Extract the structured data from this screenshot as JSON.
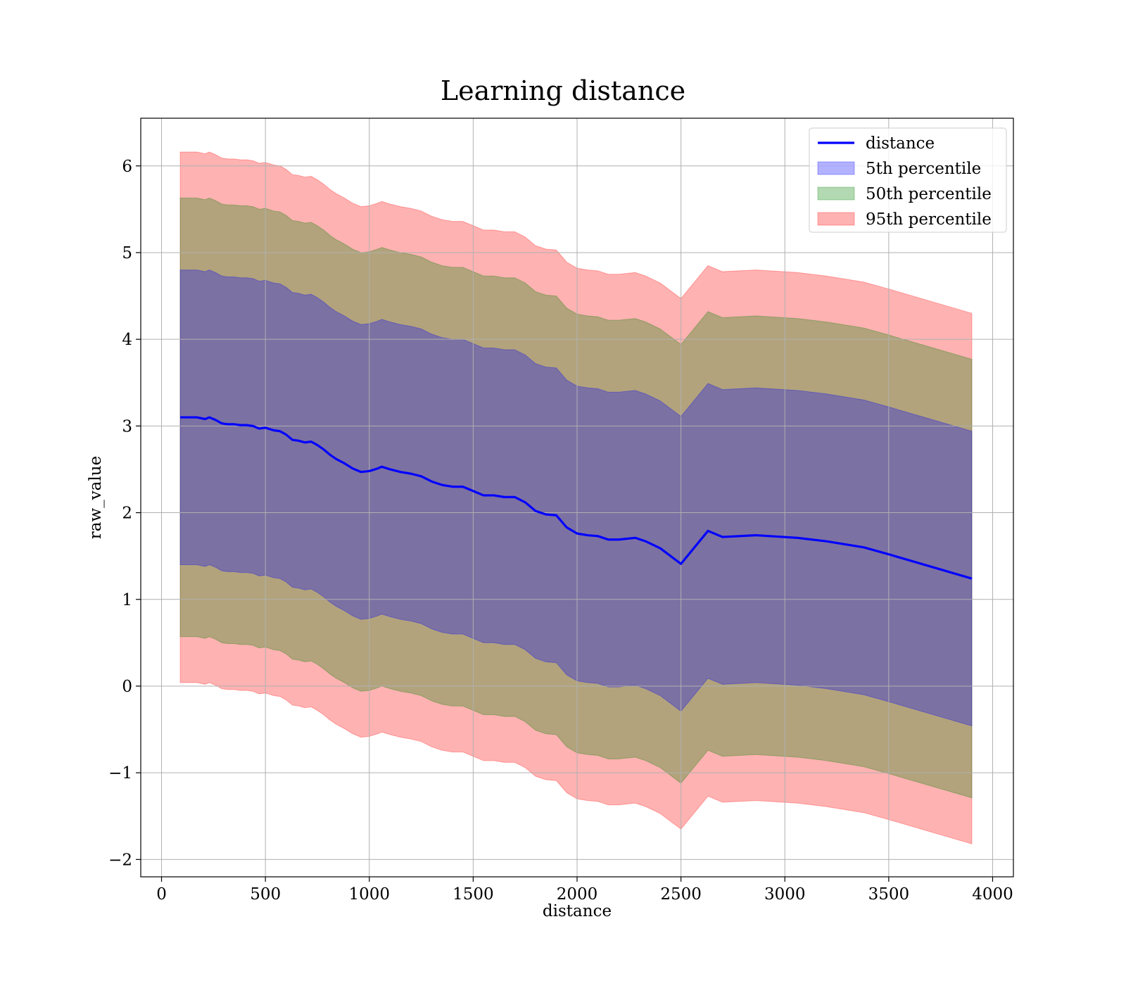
{
  "chart_data": {
    "type": "area",
    "title": "Learning distance",
    "xlabel": "distance",
    "ylabel": "raw_value",
    "xlim": [
      -100,
      4100
    ],
    "ylim": [
      -2.2,
      6.55
    ],
    "xticks": [
      0,
      500,
      1000,
      1500,
      2000,
      2500,
      3000,
      3500,
      4000
    ],
    "xtick_labels": [
      "0",
      "500",
      "1000",
      "1500",
      "2000",
      "2500",
      "3000",
      "3500",
      "4000"
    ],
    "yticks": [
      -2,
      -1,
      0,
      1,
      2,
      3,
      4,
      5,
      6
    ],
    "ytick_labels": [
      "−2",
      "−1",
      "0",
      "1",
      "2",
      "3",
      "4",
      "5",
      "6"
    ],
    "grid": true,
    "legend_position": "top-right",
    "x": [
      90,
      140,
      170,
      210,
      230,
      260,
      290,
      320,
      350,
      380,
      410,
      440,
      470,
      500,
      540,
      570,
      600,
      630,
      660,
      690,
      720,
      750,
      780,
      810,
      840,
      880,
      920,
      960,
      1000,
      1040,
      1060,
      1100,
      1150,
      1200,
      1250,
      1300,
      1350,
      1400,
      1450,
      1500,
      1550,
      1600,
      1650,
      1700,
      1750,
      1800,
      1850,
      1900,
      1950,
      2000,
      2050,
      2100,
      2150,
      2200,
      2280,
      2330,
      2400,
      2500,
      2630,
      2700,
      2860,
      3060,
      3200,
      3380,
      3500,
      3700,
      3900
    ],
    "series": [
      {
        "name": "distance",
        "style": "line",
        "color": "#0000ff",
        "values": [
          3.1,
          3.1,
          3.1,
          3.08,
          3.1,
          3.07,
          3.03,
          3.02,
          3.02,
          3.01,
          3.01,
          3.0,
          2.97,
          2.98,
          2.95,
          2.94,
          2.9,
          2.84,
          2.83,
          2.81,
          2.82,
          2.78,
          2.73,
          2.67,
          2.62,
          2.57,
          2.51,
          2.47,
          2.48,
          2.51,
          2.53,
          2.5,
          2.47,
          2.45,
          2.42,
          2.36,
          2.32,
          2.3,
          2.3,
          2.25,
          2.2,
          2.2,
          2.18,
          2.18,
          2.12,
          2.02,
          1.98,
          1.97,
          1.83,
          1.76,
          1.74,
          1.73,
          1.69,
          1.69,
          1.71,
          1.67,
          1.59,
          1.41,
          1.79,
          1.72,
          1.74,
          1.71,
          1.67,
          1.6,
          1.52,
          1.38,
          1.24
        ]
      },
      {
        "name": "5th percentile",
        "style": "band",
        "color": "#0000ff",
        "offset": 1.7
      },
      {
        "name": "50th percentile",
        "style": "band",
        "color": "#008000",
        "offset": 2.53
      },
      {
        "name": "95th percentile",
        "style": "band",
        "color": "#ff0000",
        "offset": 3.06
      }
    ]
  }
}
